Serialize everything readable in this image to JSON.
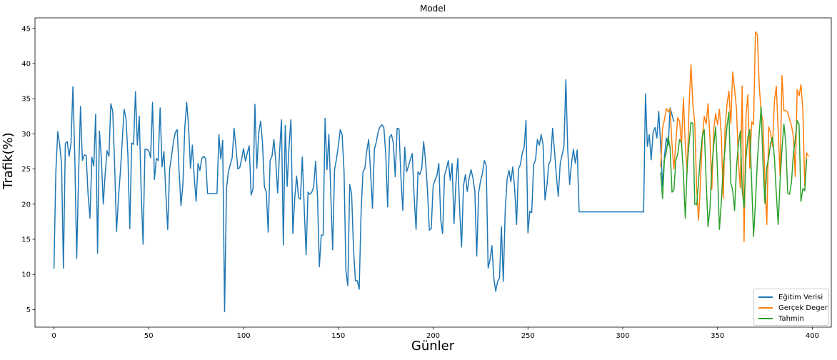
{
  "chart_data": {
    "type": "line",
    "title": "Model",
    "xlabel": "Günler",
    "ylabel": "Trafik(%)",
    "xlim": [
      -10,
      410
    ],
    "ylim": [
      2.5,
      46.5
    ],
    "x_ticks": [
      0,
      50,
      100,
      150,
      200,
      250,
      300,
      350,
      400
    ],
    "y_ticks": [
      5,
      10,
      15,
      20,
      25,
      30,
      35,
      40,
      45
    ],
    "grid": false,
    "legend_position": "bottom-right",
    "series": [
      {
        "name": "Eğitim Verisi",
        "color": "#1f77b4",
        "x_start": 0,
        "values": [
          10.8,
          24.6,
          30.3,
          28.5,
          25.8,
          10.9,
          28.6,
          28.9,
          26.8,
          28.7,
          36.7,
          26.6,
          12.3,
          24.2,
          33.9,
          26.2,
          27,
          26.9,
          21.4,
          18,
          26.7,
          25.4,
          32.8,
          13,
          30.4,
          26.6,
          20,
          24.2,
          27.6,
          26.8,
          34.3,
          33.2,
          25.7,
          16.1,
          20.8,
          24.5,
          28.9,
          33.5,
          32.2,
          27,
          16.5,
          28.7,
          28.5,
          36,
          28.4,
          32.5,
          21.9,
          14.3,
          27.8,
          27.8,
          27.6,
          26.6,
          34.5,
          23.5,
          26.5,
          26.2,
          33.7,
          25.3,
          27.5,
          21.6,
          16.4,
          24.9,
          26.8,
          28.8,
          30.2,
          30.6,
          24.7,
          19.8,
          22.7,
          30.8,
          34.5,
          31.1,
          25.1,
          28.4,
          23.8,
          20.4,
          25.8,
          24.8,
          26.5,
          26.8,
          26.5,
          21.5,
          21.5,
          21.5,
          21.5,
          21.5,
          21.5,
          29.9,
          26.4,
          29.1,
          4.7,
          22.2,
          24.6,
          25.6,
          26.6,
          30.8,
          28,
          25,
          25.2,
          26.4,
          27.9,
          26.1,
          27.3,
          28.3,
          21.3,
          22.2,
          34.2,
          25.1,
          30.1,
          31.8,
          28.7,
          22.5,
          21.7,
          16,
          26.2,
          26.8,
          29.2,
          26.1,
          21.6,
          27.4,
          32,
          14.2,
          31.2,
          22.5,
          28.3,
          32,
          15.8,
          20.8,
          24,
          20.9,
          20.7,
          26.7,
          19.4,
          12.8,
          21.7,
          21.4,
          21.7,
          22.5,
          26.1,
          21.1,
          11.1,
          15.6,
          15.6,
          32.2,
          24.9,
          29.9,
          21.6,
          13.5,
          24.9,
          26.4,
          28.3,
          30.6,
          29.9,
          24.7,
          10.5,
          8.4,
          22.8,
          21.5,
          13.6,
          9.1,
          9.1,
          7.9,
          18.9,
          24.6,
          25.1,
          27.6,
          29.2,
          24.6,
          19.4,
          27.8,
          28.8,
          30.3,
          31,
          31.3,
          30.9,
          27.1,
          19.6,
          29.5,
          29.9,
          28.7,
          23.9,
          30.8,
          30.7,
          23.8,
          19.1,
          28.1,
          24.6,
          25.4,
          26.4,
          27.2,
          20.9,
          16.4,
          24.6,
          24.2,
          25.1,
          28.9,
          26.1,
          22.1,
          16.3,
          16.5,
          22.6,
          23.4,
          24.1,
          25.8,
          17.8,
          15.8,
          24.1,
          25,
          26.2,
          23.4,
          25.8,
          17.2,
          22.9,
          26.5,
          19.1,
          13.9,
          22.6,
          24.2,
          21.8,
          23.7,
          24.9,
          23.7,
          21.8,
          12.6,
          21.6,
          23.3,
          24.4,
          26.2,
          25.5,
          10.9,
          12.1,
          14.1,
          9.5,
          7.6,
          9,
          9.5,
          16.8,
          9,
          19,
          23.5,
          24.8,
          23.2,
          25.3,
          22.2,
          17.1,
          25,
          25.6,
          27.2,
          28.1,
          31.9,
          15.9,
          19,
          18.8,
          25.6,
          26.3,
          29.2,
          28.4,
          29.9,
          28.4,
          20.6,
          22.6,
          25.7,
          26.3,
          30.8,
          27.6,
          24,
          21.1,
          25.7,
          27,
          28.2,
          37.7,
          27.7,
          22.8,
          25.9,
          27.8,
          25.8,
          27.7,
          18.9,
          18.9,
          18.9,
          18.9,
          18.9,
          18.9,
          18.9,
          18.9,
          18.9,
          18.9,
          18.9,
          18.9,
          18.9,
          18.9,
          18.9,
          18.9,
          18.9,
          18.9,
          18.9,
          18.9,
          18.9,
          18.9,
          18.9,
          18.9,
          18.9,
          18.9,
          18.9,
          18.9,
          18.9,
          18.9,
          18.9,
          18.9,
          18.9,
          18.9,
          18.9,
          35.7,
          28.2,
          29.9,
          26.3,
          30.2,
          30.9,
          29.4,
          33.2,
          28.3,
          22.5,
          26.7,
          29.4,
          28.4,
          33.7,
          32.7,
          31.7
        ]
      },
      {
        "name": "Gerçek Deger",
        "color": "#ff7f0e",
        "x_start": 320,
        "values": [
          25.3,
          30.8,
          32,
          33.6,
          33.1,
          33.6,
          28.4,
          25,
          28.7,
          32.3,
          31.8,
          28.4,
          35.1,
          28.5,
          24.5,
          34,
          39.8,
          34.2,
          31.4,
          22.2,
          17.7,
          23.2,
          29.5,
          32.5,
          31.4,
          34.3,
          29.4,
          22.1,
          30.7,
          32.9,
          31.3,
          33.5,
          29.8,
          20.8,
          30.9,
          34.2,
          36.1,
          31.5,
          38.8,
          36.3,
          33.6,
          26.1,
          22.3,
          36.8,
          14.7,
          32.5,
          35.6,
          25.1,
          31.7,
          31.3,
          44.5,
          44.1,
          36.9,
          33,
          31.7,
          23.4,
          17.1,
          31,
          30.1,
          28.2,
          34.6,
          36.8,
          30.3,
          24,
          38.3,
          33.3,
          33.3,
          33.1,
          32,
          31.2,
          29.6,
          23.9,
          36.3,
          35.4,
          37,
          33.4,
          22.6,
          27.3,
          26.8
        ]
      },
      {
        "name": "Tahmin",
        "color": "#2ca02c",
        "x_start": 320,
        "values": [
          24.5,
          20.8,
          26.4,
          27.4,
          29.6,
          27.9,
          21.7,
          22,
          26.2,
          27.1,
          29.2,
          28.7,
          24.4,
          18,
          25.4,
          28.7,
          31.6,
          31.5,
          20,
          19.9,
          23.3,
          27,
          29.7,
          30.6,
          23.4,
          16.8,
          19.3,
          25.2,
          28.4,
          31,
          24.5,
          16.4,
          20.3,
          25.3,
          27.9,
          31.1,
          33.1,
          23,
          22,
          19.1,
          25.2,
          28.5,
          30.4,
          22.1,
          19.5,
          26.5,
          29.5,
          30.6,
          23.1,
          15.4,
          20.3,
          26.1,
          30.1,
          33.8,
          25.6,
          20.1,
          25.3,
          26.6,
          28.7,
          29.5,
          26.7,
          21.5,
          17.1,
          23.3,
          27.9,
          31.4,
          28.7,
          21.6,
          21.4,
          23.1,
          27.1,
          29.3,
          31.9,
          31.4,
          20.4,
          22.2,
          21.9,
          26.4
        ]
      }
    ]
  }
}
